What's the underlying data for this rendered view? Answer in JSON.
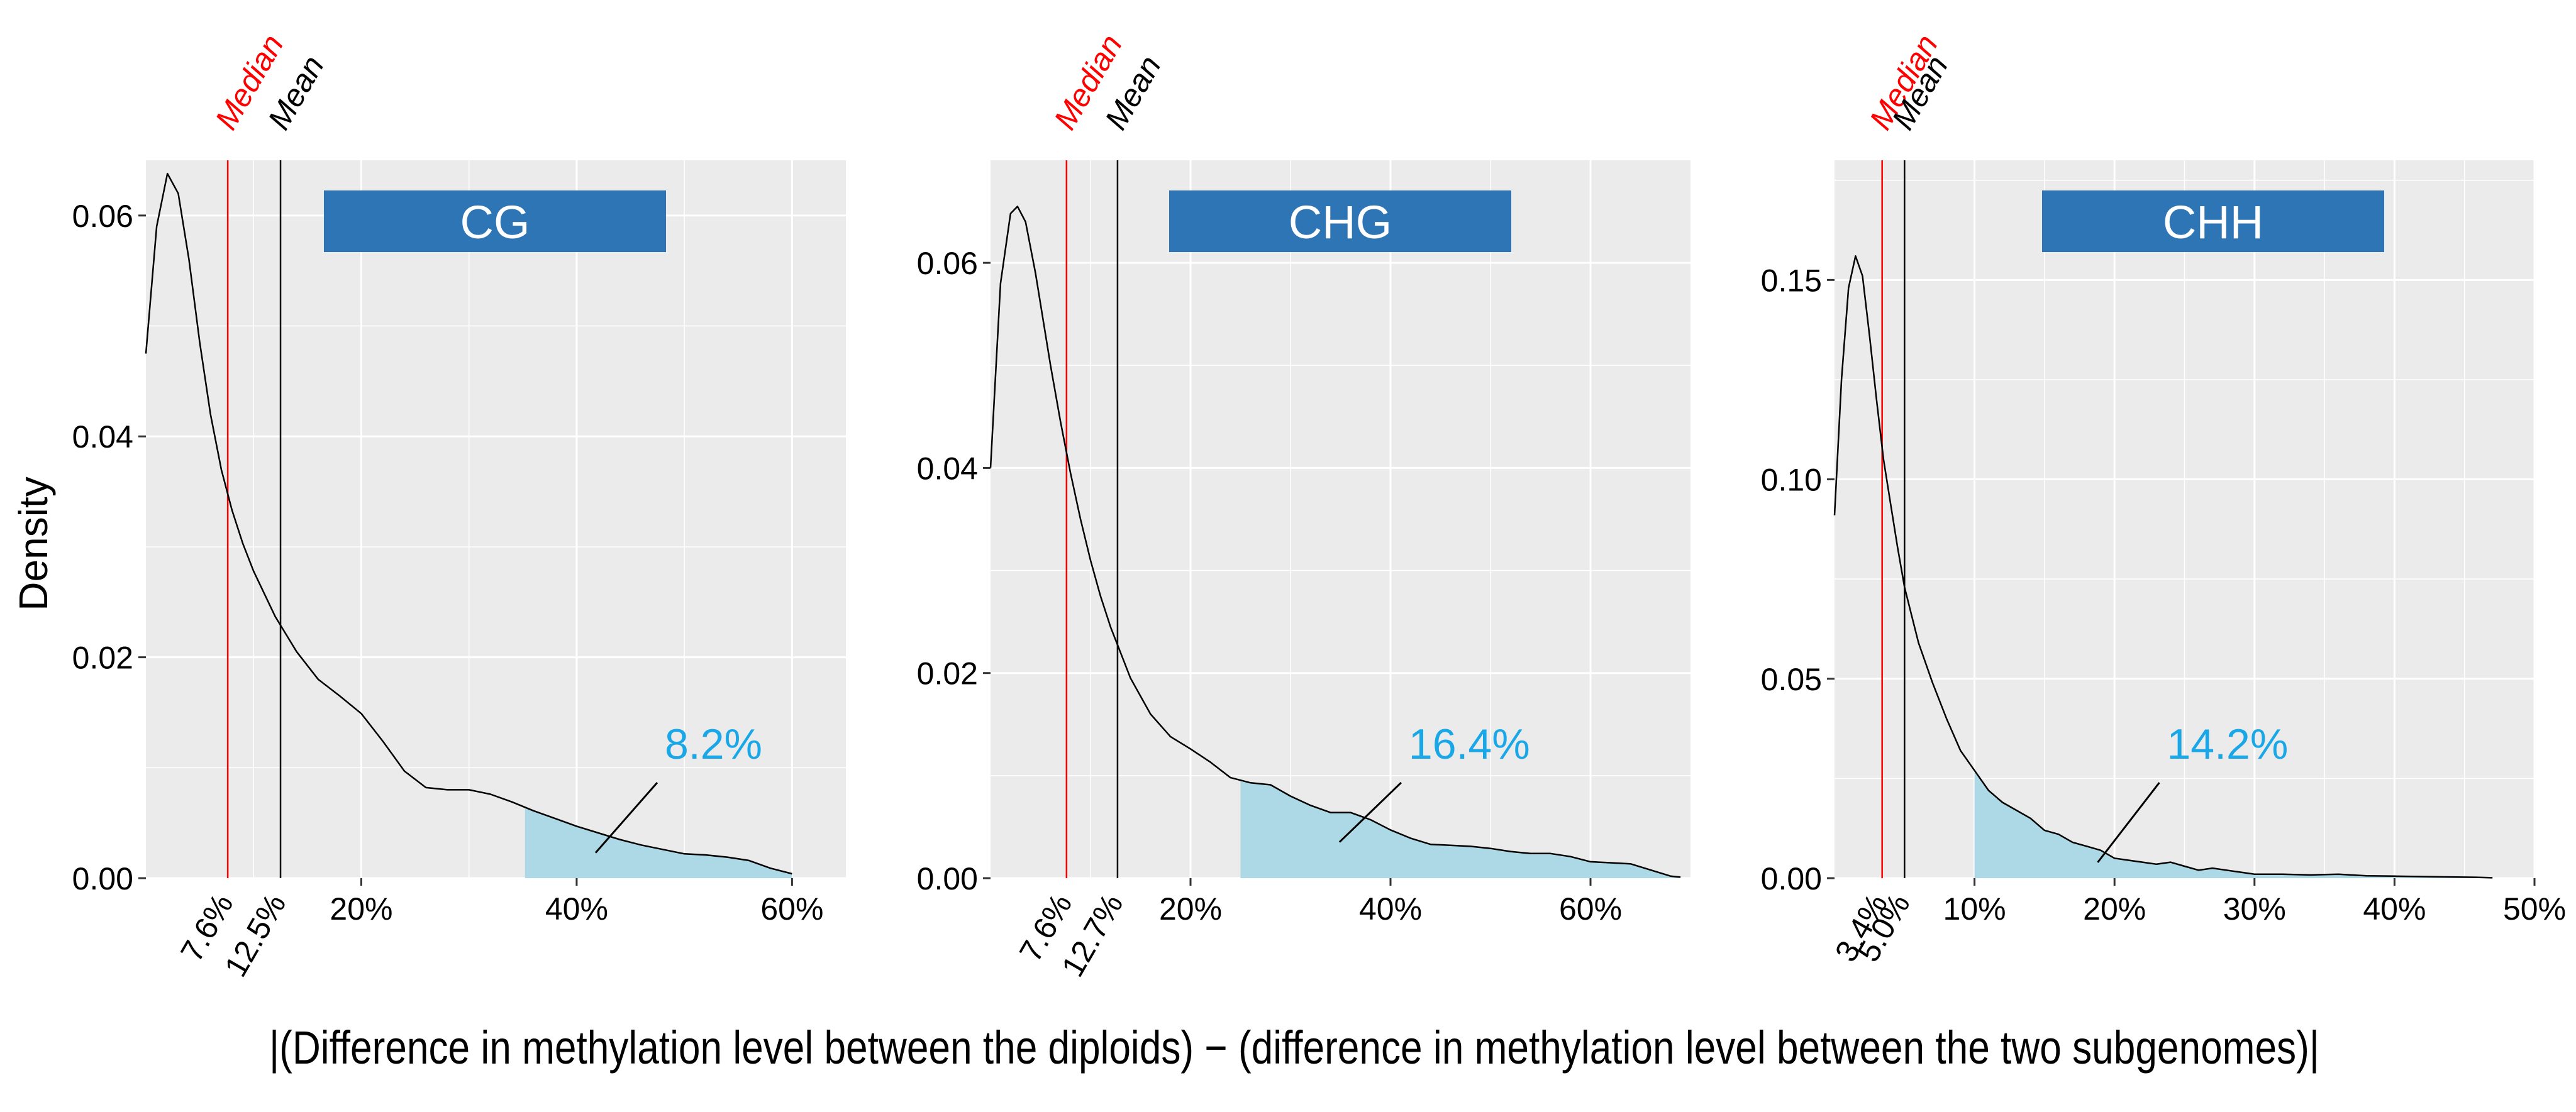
{
  "figure": {
    "ylabel": "Density",
    "xlabel": "|(Difference in methylation level between the diploids) − (difference in methylation level between the two subgenomes)|",
    "colors": {
      "panel_bg": "#ebebeb",
      "grid": "#ffffff",
      "curve": "#000000",
      "shade": "#add8e6",
      "median": "#ff0000",
      "mean": "#000000",
      "strip": "#2e75b6",
      "strip_text": "#ffffff",
      "pct_text": "#1aa7e8",
      "axis_text": "#000000"
    }
  },
  "chart_data": [
    {
      "type": "area",
      "strip": "CG",
      "xlim": [
        0,
        65
      ],
      "ylim": [
        0,
        0.065
      ],
      "xticks": [
        20,
        40,
        60
      ],
      "xtick_labels": [
        "20%",
        "40%",
        "60%"
      ],
      "yticks": [
        0,
        0.02,
        0.04,
        0.06
      ],
      "ytick_labels": [
        "0.00",
        "0.02",
        "0.04",
        "0.06"
      ],
      "median": {
        "label": "Median",
        "x": 7.6,
        "tick_label": "7.6%"
      },
      "mean": {
        "label": "Mean",
        "x": 12.5,
        "tick_label": "12.5%"
      },
      "shade_from": 35.2,
      "shaded_percent": "8.2%",
      "curve": {
        "x": [
          0,
          1,
          2,
          3,
          4,
          5,
          6,
          7,
          8,
          9,
          10,
          12,
          14,
          16,
          18,
          20,
          22,
          24,
          26,
          28,
          30,
          32,
          34,
          36,
          38,
          40,
          42,
          44,
          46,
          48,
          50,
          52,
          54,
          56,
          58,
          60
        ],
        "y": [
          0.0475,
          0.059,
          0.0638,
          0.062,
          0.056,
          0.0485,
          0.042,
          0.037,
          0.0333,
          0.0303,
          0.0278,
          0.0237,
          0.0205,
          0.018,
          0.0165,
          0.0149,
          0.0124,
          0.0097,
          0.0082,
          0.008,
          0.008,
          0.0076,
          0.0069,
          0.0061,
          0.0054,
          0.0047,
          0.0041,
          0.0035,
          0.003,
          0.0026,
          0.0022,
          0.0021,
          0.0019,
          0.0016,
          0.0009,
          0.0004
        ]
      }
    },
    {
      "type": "area",
      "strip": "CHG",
      "xlim": [
        0,
        70
      ],
      "ylim": [
        0,
        0.07
      ],
      "xticks": [
        20,
        40,
        60
      ],
      "xtick_labels": [
        "20%",
        "40%",
        "60%"
      ],
      "yticks": [
        0,
        0.02,
        0.04,
        0.06
      ],
      "ytick_labels": [
        "0.00",
        "0.02",
        "0.04",
        "0.06"
      ],
      "median": {
        "label": "Median",
        "x": 7.6,
        "tick_label": "7.6%"
      },
      "mean": {
        "label": "Mean",
        "x": 12.7,
        "tick_label": "12.7%"
      },
      "shade_from": 25,
      "shaded_percent": "16.4%",
      "curve": {
        "x": [
          0,
          1,
          2,
          2.7,
          3.5,
          4.5,
          6,
          7,
          8,
          9,
          10,
          11,
          12,
          14,
          16,
          18,
          20,
          22,
          24,
          26,
          28,
          30,
          32,
          34,
          36,
          38,
          40,
          42,
          44,
          46,
          48,
          50,
          52,
          54,
          56,
          58,
          60,
          62,
          64,
          66,
          68,
          69
        ],
        "y": [
          0.04,
          0.058,
          0.0648,
          0.0655,
          0.064,
          0.059,
          0.05,
          0.0445,
          0.0395,
          0.035,
          0.031,
          0.0275,
          0.0245,
          0.0195,
          0.016,
          0.0138,
          0.0126,
          0.0113,
          0.0098,
          0.0093,
          0.0091,
          0.008,
          0.0071,
          0.0064,
          0.0064,
          0.0057,
          0.0047,
          0.0039,
          0.0033,
          0.0032,
          0.0031,
          0.0029,
          0.0026,
          0.0024,
          0.0024,
          0.0021,
          0.0016,
          0.0015,
          0.0014,
          0.0008,
          0.0002,
          0.0001
        ]
      }
    },
    {
      "type": "area",
      "strip": "CHH",
      "xlim": [
        0,
        50
      ],
      "ylim": [
        0,
        0.18
      ],
      "xticks": [
        10,
        20,
        30,
        40,
        50
      ],
      "xtick_labels": [
        "10%",
        "20%",
        "30%",
        "40%",
        "50%"
      ],
      "yticks": [
        0,
        0.05,
        0.1,
        0.15
      ],
      "ytick_labels": [
        "0.00",
        "0.05",
        "0.10",
        "0.15"
      ],
      "median": {
        "label": "Median",
        "x": 3.4,
        "tick_label": "3.4%"
      },
      "mean": {
        "label": "Mean",
        "x": 5.0,
        "tick_label": "5.0%"
      },
      "shade_from": 10,
      "shaded_percent": "14.2%",
      "curve": {
        "x": [
          0,
          0.5,
          1,
          1.5,
          2,
          2.5,
          3,
          3.5,
          4,
          4.5,
          5,
          5.5,
          6,
          7,
          8,
          9,
          10,
          11,
          12,
          13,
          14,
          15,
          16,
          17,
          18,
          19,
          20,
          21,
          22,
          23,
          24,
          25,
          26,
          27,
          28,
          29,
          30,
          32,
          34,
          36,
          38,
          40,
          42,
          44,
          46,
          47
        ],
        "y": [
          0.091,
          0.125,
          0.148,
          0.156,
          0.151,
          0.136,
          0.12,
          0.105,
          0.094,
          0.083,
          0.073,
          0.066,
          0.059,
          0.049,
          0.04,
          0.032,
          0.027,
          0.022,
          0.019,
          0.017,
          0.015,
          0.012,
          0.011,
          0.009,
          0.008,
          0.007,
          0.005,
          0.0045,
          0.004,
          0.0035,
          0.004,
          0.003,
          0.002,
          0.0025,
          0.002,
          0.0015,
          0.001,
          0.001,
          0.0008,
          0.001,
          0.0006,
          0.0005,
          0.0004,
          0.0003,
          0.0002,
          0.0001
        ]
      }
    }
  ]
}
